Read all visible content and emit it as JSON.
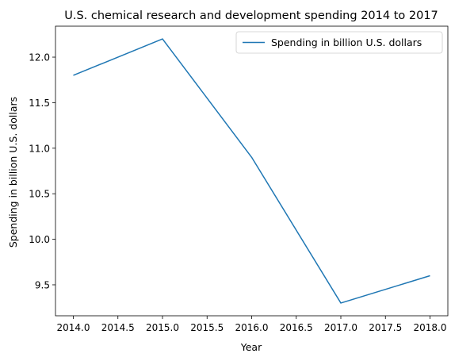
{
  "chart_data": {
    "type": "line",
    "title": "U.S. chemical research and development spending 2014 to 2017",
    "xlabel": "Year",
    "ylabel": "Spending in billion U.S. dollars",
    "x": [
      2014,
      2015,
      2016,
      2017,
      2018
    ],
    "series": [
      {
        "name": "Spending in billion U.S. dollars",
        "values": [
          11.8,
          12.2,
          10.9,
          9.3,
          9.6
        ],
        "color": "#1f77b4"
      }
    ],
    "xlim": [
      2013.8,
      2018.2
    ],
    "ylim": [
      9.16,
      12.34
    ],
    "xticks": [
      "2014.0",
      "2014.5",
      "2015.0",
      "2015.5",
      "2016.0",
      "2016.5",
      "2017.0",
      "2017.5",
      "2018.0"
    ],
    "yticks": [
      "9.5",
      "10.0",
      "10.5",
      "11.0",
      "11.5",
      "12.0"
    ],
    "grid": false,
    "legend_position": "top-right"
  }
}
